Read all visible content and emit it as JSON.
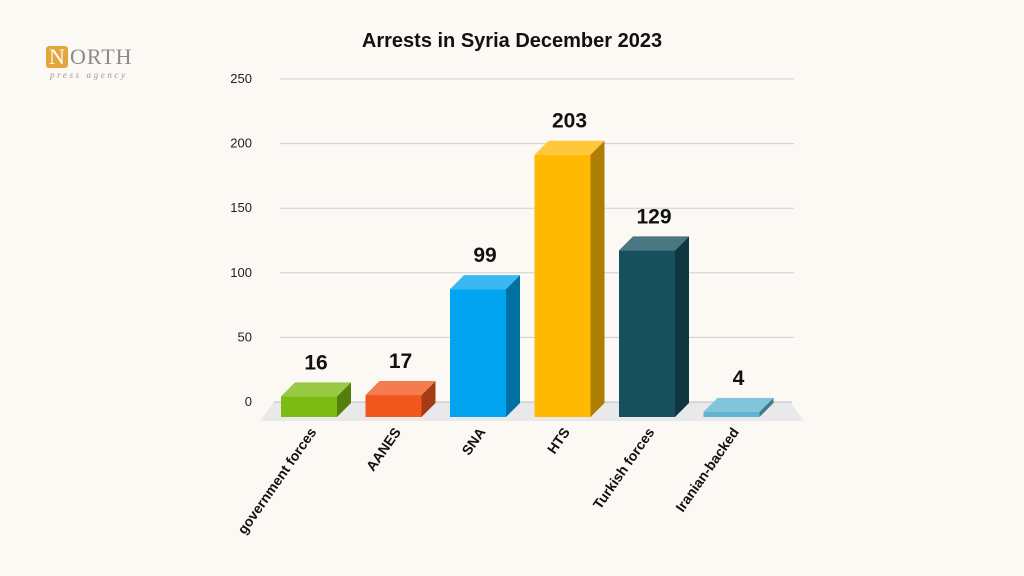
{
  "logo": {
    "initial": "N",
    "rest": "ORTH",
    "tagline": "press agency"
  },
  "chart_data": {
    "type": "bar",
    "title": "Arrests in Syria December 2023",
    "xlabel": "",
    "ylabel": "",
    "ylim": [
      0,
      250
    ],
    "yticks": [
      0,
      50,
      100,
      150,
      200,
      250
    ],
    "grid": true,
    "categories": [
      "government forces",
      "AANES",
      "SNA",
      "HTS",
      "Turkish forces",
      "Iranian-backed"
    ],
    "values": [
      16,
      17,
      99,
      203,
      129,
      4
    ],
    "colors": [
      "#7cbb12",
      "#f2571e",
      "#01a4ef",
      "#ffb902",
      "#17505d",
      "#5fb4cf"
    ]
  }
}
